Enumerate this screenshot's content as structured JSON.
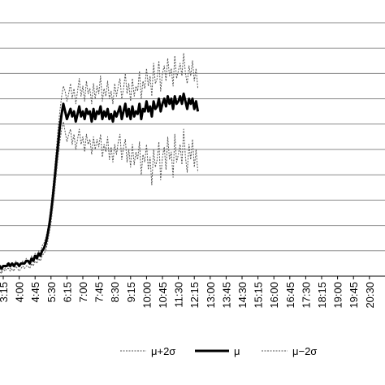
{
  "chart_data": {
    "type": "line",
    "title": "",
    "xlabel": "",
    "ylabel": "",
    "grid": "horizontal",
    "legend_position": "bottom",
    "x_ticks": [
      "3:15",
      "4:00",
      "4:45",
      "5:30",
      "6:15",
      "7:00",
      "7:45",
      "8:30",
      "9:15",
      "10:00",
      "10:45",
      "11:30",
      "12:15",
      "13:00",
      "13:45",
      "14:30",
      "15:15",
      "16:00",
      "16:45",
      "17:30",
      "18:15",
      "19:00",
      "19:45",
      "20:30"
    ],
    "x_tick_labels_shown": [
      "3:15",
      "4:00",
      "4:45",
      "5:30",
      "6:15",
      "7:00",
      "7:45",
      "8:30",
      "9:15",
      "10:00",
      "10:45",
      "11:30",
      "12:15",
      "13:00",
      "13:45",
      "14:30",
      "15:15",
      "16:00",
      "16:45",
      "17:30",
      "18:15",
      "19:00",
      "19:45",
      "20:30"
    ],
    "x_start": "3:00",
    "x_step_minutes": 5,
    "ylim": [
      0,
      10
    ],
    "series": [
      {
        "name": "μ+2σ",
        "style": "dotted-thin",
        "color": "#555555",
        "values": [
          0.2,
          0.3,
          0.2,
          0.4,
          0.3,
          0.5,
          0.4,
          0.3,
          0.5,
          0.4,
          0.6,
          0.5,
          0.4,
          0.5,
          0.6,
          0.5,
          0.7,
          0.6,
          0.5,
          0.8,
          0.7,
          0.9,
          0.8,
          1.0,
          0.9,
          1.2,
          1.3,
          1.5,
          1.8,
          2.2,
          2.8,
          3.5,
          4.2,
          5.0,
          5.8,
          6.5,
          7.1,
          7.5,
          7.3,
          6.9,
          7.2,
          7.6,
          7.0,
          7.4,
          6.8,
          7.3,
          7.8,
          7.1,
          7.5,
          6.9,
          7.7,
          7.2,
          7.4,
          6.8,
          7.6,
          7.0,
          7.5,
          7.2,
          7.9,
          6.9,
          7.4,
          7.1,
          7.7,
          7.0,
          7.3,
          6.8,
          7.6,
          7.1,
          7.5,
          7.8,
          7.0,
          7.4,
          8.0,
          7.2,
          7.6,
          6.9,
          7.8,
          7.1,
          7.5,
          7.3,
          8.1,
          7.0,
          7.7,
          7.4,
          8.2,
          7.5,
          7.9,
          7.1,
          8.4,
          7.6,
          7.8,
          8.5,
          7.3,
          8.0,
          8.3,
          7.7,
          8.6,
          7.9,
          8.2,
          7.5,
          8.7,
          7.8,
          8.1,
          8.4,
          7.9,
          8.8,
          8.0,
          7.6,
          8.3,
          7.9,
          8.5,
          7.7,
          8.2,
          7.4
        ]
      },
      {
        "name": "μ",
        "style": "solid-thick",
        "color": "#000000",
        "values": [
          0.3,
          0.4,
          0.3,
          0.4,
          0.4,
          0.4,
          0.5,
          0.4,
          0.5,
          0.4,
          0.5,
          0.5,
          0.4,
          0.5,
          0.5,
          0.5,
          0.6,
          0.6,
          0.5,
          0.7,
          0.6,
          0.8,
          0.7,
          0.9,
          0.8,
          1.0,
          1.1,
          1.3,
          1.6,
          2.0,
          2.5,
          3.1,
          3.8,
          4.5,
          5.2,
          5.9,
          6.4,
          6.8,
          6.5,
          6.2,
          6.4,
          6.6,
          6.3,
          6.5,
          6.1,
          6.4,
          6.7,
          6.3,
          6.5,
          6.2,
          6.6,
          6.4,
          6.5,
          6.1,
          6.6,
          6.2,
          6.5,
          6.4,
          6.7,
          6.2,
          6.5,
          6.3,
          6.6,
          6.2,
          6.4,
          6.1,
          6.5,
          6.3,
          6.5,
          6.7,
          6.2,
          6.5,
          6.8,
          6.3,
          6.6,
          6.2,
          6.7,
          6.3,
          6.5,
          6.4,
          6.8,
          6.2,
          6.6,
          6.5,
          6.9,
          6.5,
          6.7,
          6.3,
          6.9,
          6.6,
          6.7,
          7.0,
          6.5,
          6.8,
          7.0,
          6.7,
          7.1,
          6.8,
          7.0,
          6.6,
          7.1,
          6.8,
          6.9,
          7.1,
          6.8,
          7.2,
          6.9,
          6.6,
          7.0,
          6.8,
          7.0,
          6.6,
          6.9,
          6.5
        ]
      },
      {
        "name": "μ−2σ",
        "style": "dotted-thin",
        "color": "#555555",
        "values": [
          0.2,
          0.2,
          0.1,
          0.3,
          0.2,
          0.3,
          0.3,
          0.2,
          0.3,
          0.2,
          0.4,
          0.3,
          0.2,
          0.3,
          0.4,
          0.3,
          0.4,
          0.4,
          0.3,
          0.5,
          0.4,
          0.6,
          0.5,
          0.7,
          0.6,
          0.8,
          0.9,
          1.0,
          1.3,
          1.7,
          2.1,
          2.7,
          3.3,
          4.0,
          4.7,
          5.3,
          5.8,
          6.1,
          5.7,
          5.3,
          5.6,
          5.8,
          5.2,
          5.6,
          5.0,
          5.4,
          5.8,
          5.2,
          5.5,
          4.9,
          5.6,
          5.2,
          5.4,
          4.8,
          5.5,
          5.0,
          5.4,
          5.1,
          5.6,
          4.7,
          5.2,
          4.9,
          5.5,
          4.6,
          5.1,
          4.5,
          5.2,
          4.8,
          5.3,
          5.6,
          4.6,
          5.1,
          5.4,
          4.5,
          5.0,
          4.3,
          5.2,
          4.4,
          4.9,
          4.6,
          5.3,
          4.0,
          4.8,
          4.5,
          5.2,
          4.2,
          4.7,
          3.6,
          5.0,
          4.3,
          4.6,
          5.3,
          3.8,
          4.7,
          5.1,
          4.2,
          5.5,
          4.6,
          4.9,
          3.9,
          5.6,
          4.5,
          4.8,
          5.2,
          4.4,
          5.8,
          4.7,
          4.1,
          5.2,
          4.6,
          5.4,
          4.3,
          5.0,
          4.1
        ]
      }
    ],
    "legend": [
      {
        "name": "μ+2σ",
        "style": "dotted-thin"
      },
      {
        "name": "μ",
        "style": "solid-thick"
      },
      {
        "name": "μ−2σ",
        "style": "dotted-thin"
      }
    ]
  }
}
